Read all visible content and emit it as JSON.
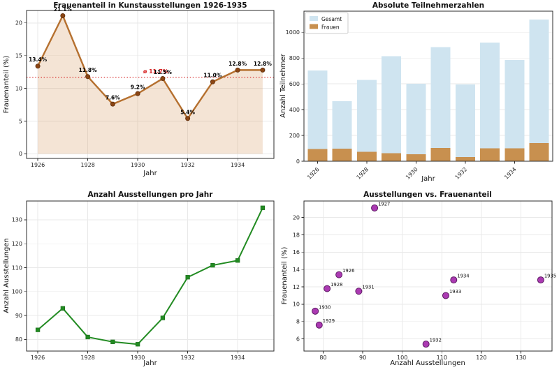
{
  "figure": {
    "background": "#ffffff"
  },
  "chart_data": [
    {
      "type": "area",
      "title": "Frauenanteil in Kunstausstellungen 1926-1935",
      "xlabel": "Jahr",
      "ylabel": "Frauenanteil (%)",
      "x": [
        1926,
        1927,
        1928,
        1929,
        1930,
        1931,
        1932,
        1933,
        1934,
        1935
      ],
      "values": [
        13.4,
        21.1,
        11.8,
        7.6,
        9.2,
        11.5,
        5.4,
        11.0,
        12.8,
        12.8
      ],
      "point_labels": [
        "13.4%",
        "21.1%",
        "11.8%",
        "7.6%",
        "9.2%",
        "11.5%",
        "5.4%",
        "11.0%",
        "12.8%",
        "12.8%"
      ],
      "mean_line": {
        "value": 11.7,
        "label": "ø 11.7%",
        "color": "#d62222",
        "style": "dotted"
      },
      "xticks": [
        1926,
        1928,
        1930,
        1932,
        1934
      ],
      "yticks": [
        0,
        5,
        10,
        15,
        20
      ],
      "xlim": [
        1925.55,
        1935.45
      ],
      "ylim": [
        -0.7,
        21.9
      ],
      "grid": true,
      "colors": {
        "line": "#b5702f",
        "marker": "#8b4513",
        "marker_edge": "#5f2f0e",
        "fill": "#cd853f"
      }
    },
    {
      "type": "bar",
      "title": "Absolute Teilnehmerzahlen",
      "xlabel": "Jahr",
      "ylabel": "Anzahl Teilnehmer",
      "categories": [
        1926,
        1927,
        1928,
        1929,
        1930,
        1931,
        1932,
        1933,
        1934,
        1935
      ],
      "series": [
        {
          "name": "Gesamt",
          "color": "#cfe4f0",
          "values": [
            705,
            465,
            630,
            815,
            600,
            885,
            595,
            920,
            785,
            1100
          ]
        },
        {
          "name": "Frauen",
          "color": "#c8904f",
          "values": [
            94,
            98,
            74,
            62,
            55,
            102,
            32,
            101,
            100,
            141
          ]
        }
      ],
      "legend_position": "upper left",
      "xticks": [
        1926,
        1928,
        1930,
        1932,
        1934
      ],
      "yticks": [
        0,
        200,
        400,
        600,
        800,
        1000
      ],
      "ylim": [
        0,
        1164
      ],
      "grid": true
    },
    {
      "type": "line",
      "title": "Anzahl Ausstellungen pro Jahr",
      "xlabel": "Jahr",
      "ylabel": "Anzahl Ausstellungen",
      "x": [
        1926,
        1927,
        1928,
        1929,
        1930,
        1931,
        1932,
        1933,
        1934,
        1935
      ],
      "values": [
        84,
        93,
        81,
        79,
        78,
        89,
        106,
        111,
        113,
        135
      ],
      "xticks": [
        1926,
        1928,
        1930,
        1932,
        1934
      ],
      "yticks": [
        80,
        90,
        100,
        110,
        120,
        130
      ],
      "xlim": [
        1925.55,
        1935.45
      ],
      "ylim": [
        75.15,
        137.85
      ],
      "grid": true,
      "colors": {
        "line": "#228b22",
        "marker": "#228b22",
        "marker_edge": "#1b6e1b"
      }
    },
    {
      "type": "scatter",
      "title": "Ausstellungen vs. Frauenanteil",
      "xlabel": "Anzahl Ausstellungen",
      "ylabel": "Frauenanteil (%)",
      "points": [
        {
          "label": "1926",
          "x": 84,
          "y": 13.4
        },
        {
          "label": "1927",
          "x": 93,
          "y": 21.1
        },
        {
          "label": "1928",
          "x": 81,
          "y": 11.8
        },
        {
          "label": "1929",
          "x": 79,
          "y": 7.6
        },
        {
          "label": "1930",
          "x": 78,
          "y": 9.2
        },
        {
          "label": "1931",
          "x": 89,
          "y": 11.5
        },
        {
          "label": "1932",
          "x": 106,
          "y": 5.4
        },
        {
          "label": "1933",
          "x": 111,
          "y": 11.0
        },
        {
          "label": "1934",
          "x": 113,
          "y": 12.8
        },
        {
          "label": "1935",
          "x": 135,
          "y": 12.8
        }
      ],
      "xticks": [
        80,
        90,
        100,
        110,
        120,
        130
      ],
      "yticks": [
        6,
        8,
        10,
        12,
        14,
        16,
        18,
        20
      ],
      "xlim": [
        75.15,
        137.85
      ],
      "ylim": [
        4.6,
        21.9
      ],
      "grid": true,
      "colors": {
        "fill": "#ab3ab2",
        "edge": "#5d1a63"
      }
    }
  ]
}
